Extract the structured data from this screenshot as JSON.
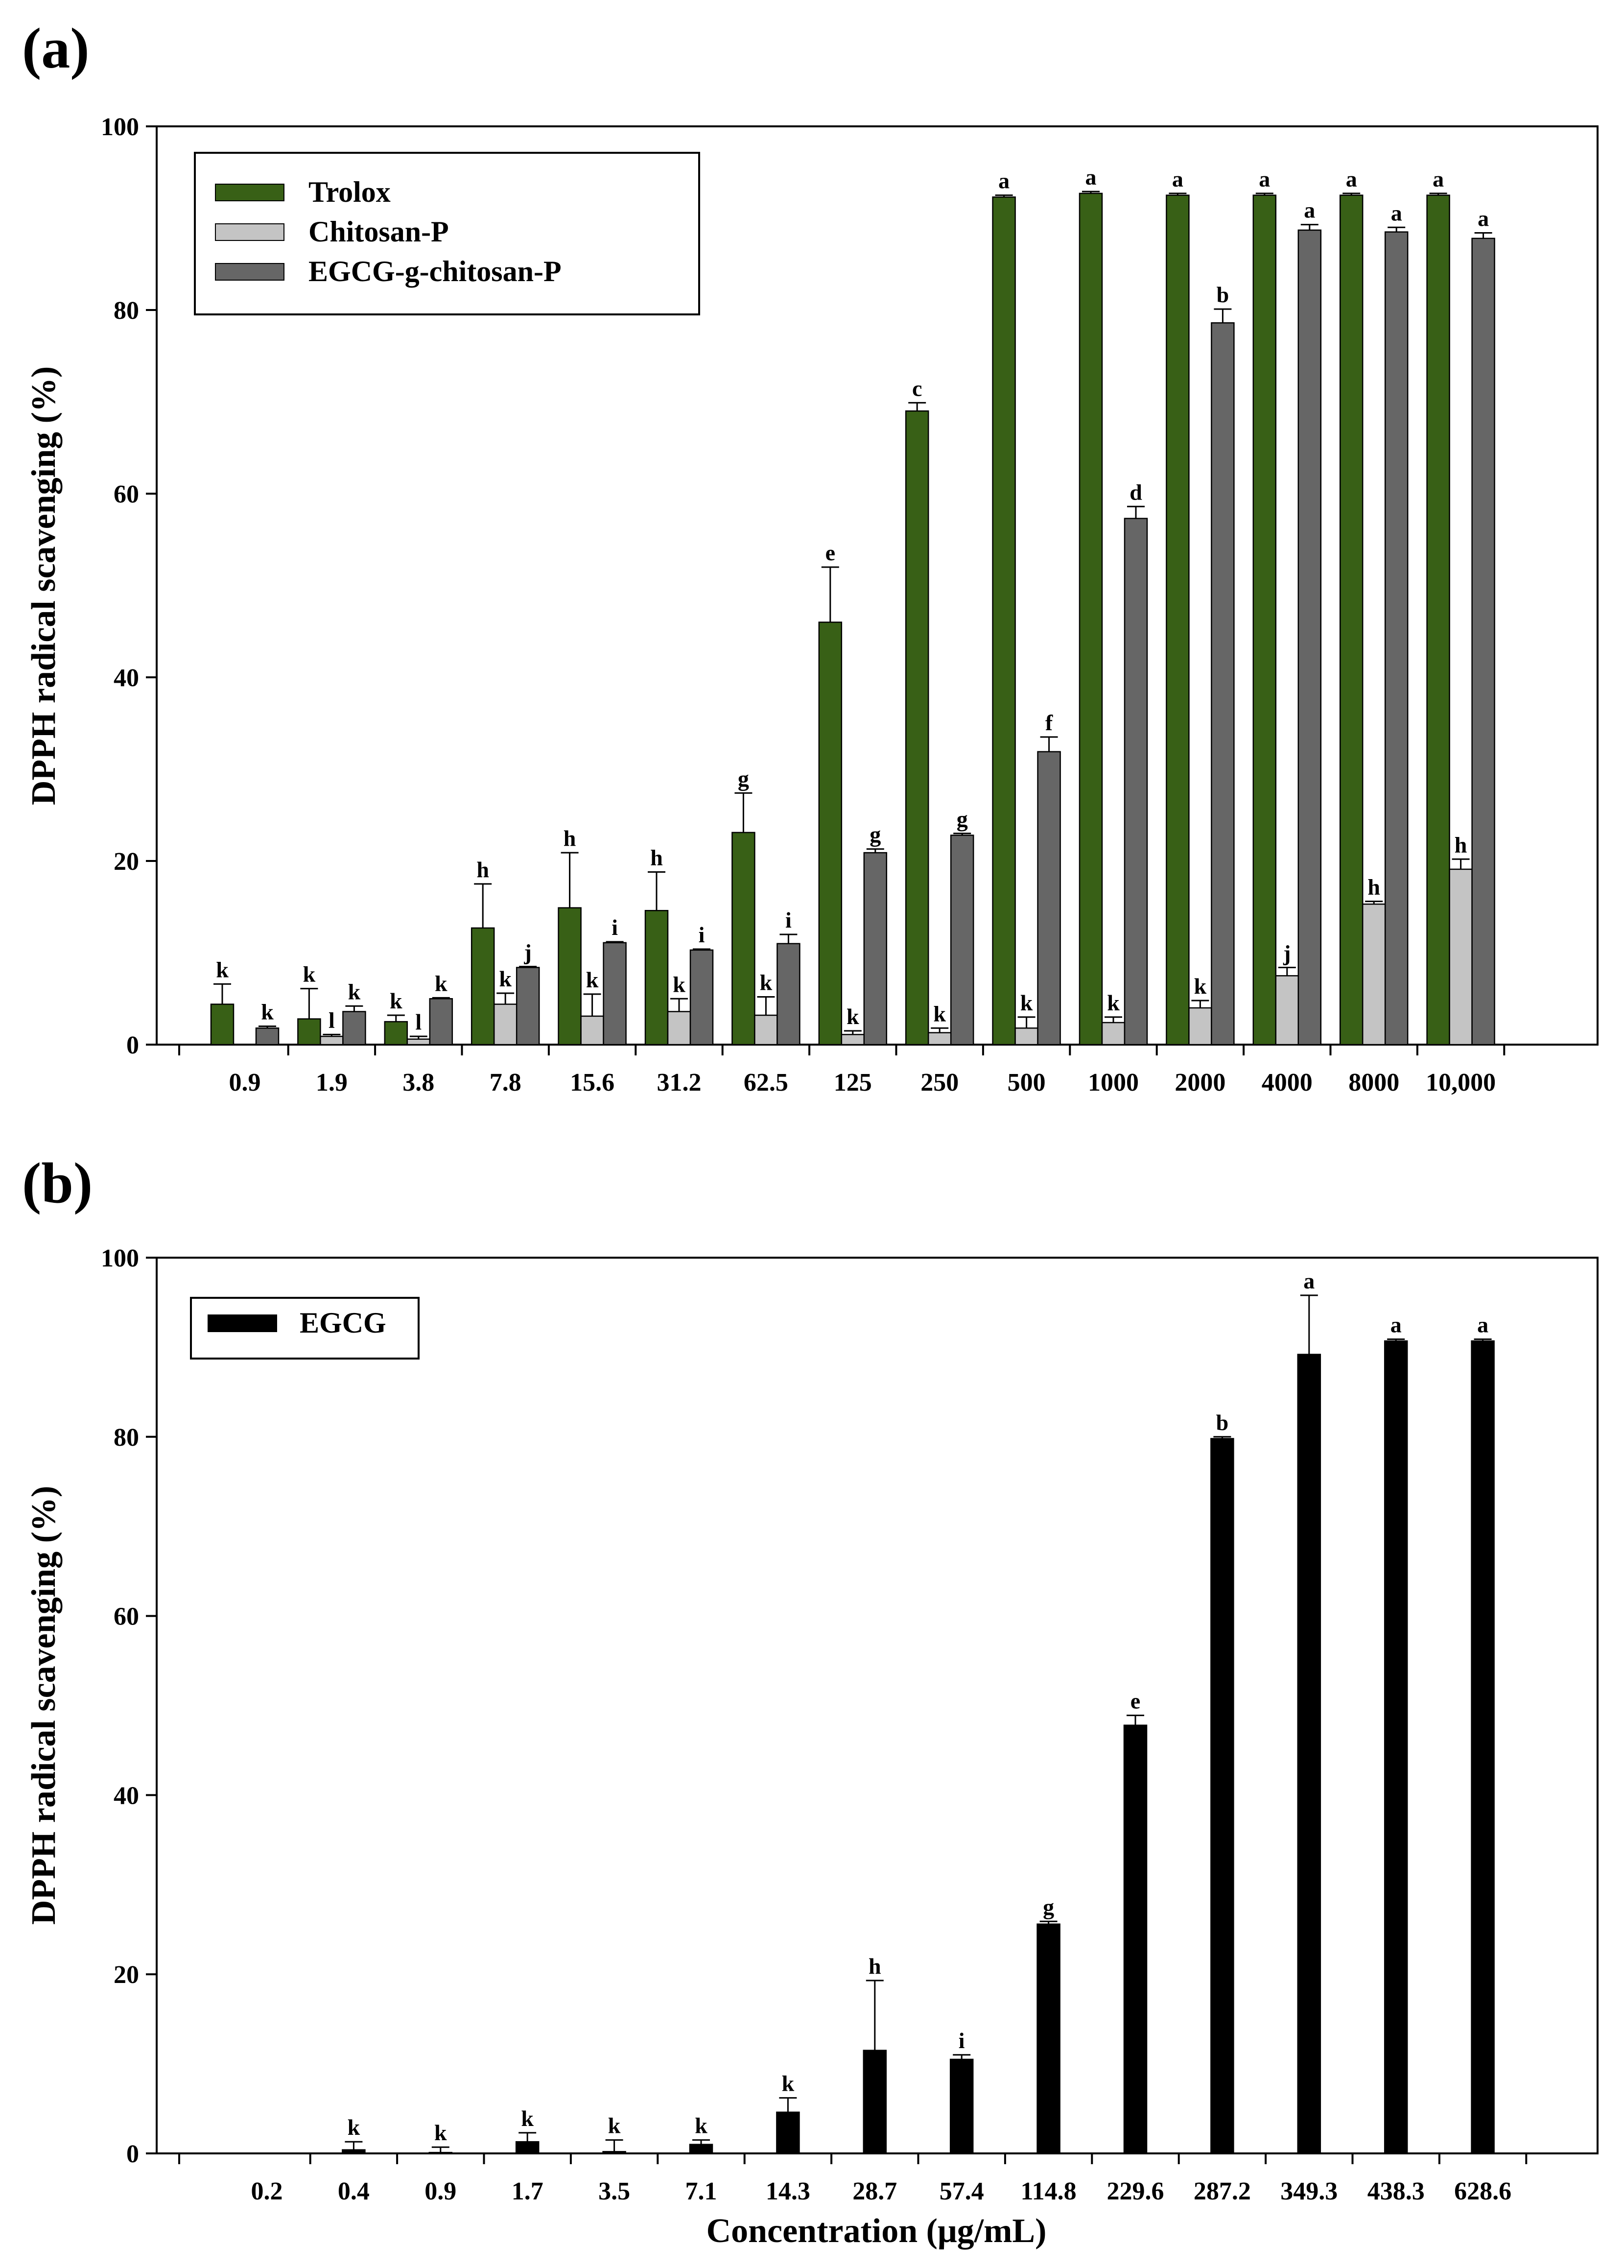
{
  "chart_data": [
    {
      "panel_label": "(a)",
      "type": "bar",
      "xlabel": "",
      "ylabel": "DPPH radical scavenging (%)",
      "ylim": [
        0,
        100
      ],
      "yticks": [
        "0",
        "20",
        "40",
        "60",
        "80",
        "100"
      ],
      "categories": [
        "0.9",
        "1.9",
        "3.8",
        "7.8",
        "15.6",
        "31.2",
        "62.5",
        "125",
        "250",
        "500",
        "1000",
        "2000",
        "4000",
        "8000",
        "10,000"
      ],
      "legend_position": "top-left",
      "series": [
        {
          "name": "Trolox",
          "color": "#386016",
          "values": [
            4.4,
            2.8,
            2.5,
            12.7,
            14.9,
            14.6,
            23.1,
            46.0,
            69.0,
            92.3,
            92.7,
            92.5,
            92.5,
            92.5,
            92.5
          ],
          "errors": [
            2.2,
            3.3,
            0.7,
            4.8,
            6.0,
            4.2,
            4.3,
            6.0,
            0.9,
            0.2,
            0.2,
            0.2,
            0.2,
            0.2,
            0.2
          ],
          "letters": [
            "k",
            "k",
            "k",
            "h",
            "h",
            "h",
            "g",
            "e",
            "c",
            "a",
            "a",
            "a",
            "a",
            "a",
            "a"
          ]
        },
        {
          "name": "Chitosan-P",
          "color": "#c4c4c4",
          "values": [
            0,
            0.9,
            0.6,
            4.4,
            3.1,
            3.6,
            3.2,
            1.1,
            1.3,
            1.8,
            2.4,
            4.0,
            7.5,
            15.3,
            19.1
          ],
          "errors": [
            0,
            0.2,
            0.3,
            1.2,
            2.4,
            1.4,
            2.0,
            0.4,
            0.5,
            1.2,
            0.6,
            0.8,
            0.9,
            0.3,
            1.1
          ],
          "letters": [
            "",
            "l",
            "l",
            "k",
            "k",
            "k",
            "k",
            "k",
            "k",
            "k",
            "k",
            "k",
            "j",
            "h",
            "h"
          ]
        },
        {
          "name": "EGCG-g-chitosan-P",
          "color": "#666666",
          "values": [
            1.8,
            3.6,
            5.0,
            8.4,
            11.1,
            10.3,
            11.0,
            20.9,
            22.8,
            31.9,
            57.3,
            78.6,
            88.7,
            88.5,
            87.8
          ],
          "errors": [
            0.2,
            0.6,
            0.1,
            0.1,
            0.1,
            0.1,
            1.0,
            0.4,
            0.2,
            1.6,
            1.3,
            1.5,
            0.6,
            0.5,
            0.6
          ],
          "letters": [
            "k",
            "k",
            "k",
            "j",
            "i",
            "i",
            "i",
            "g",
            "g",
            "f",
            "d",
            "b",
            "a",
            "a",
            "a"
          ]
        }
      ]
    },
    {
      "panel_label": "(b)",
      "type": "bar",
      "xlabel": "Concentration (μg/mL)",
      "ylabel": "DPPH radical scavenging (%)",
      "ylim": [
        0,
        100
      ],
      "yticks": [
        "0",
        "20",
        "40",
        "60",
        "80",
        "100"
      ],
      "categories": [
        "0.2",
        "0.4",
        "0.9",
        "1.7",
        "3.5",
        "7.1",
        "14.3",
        "28.7",
        "57.4",
        "114.8",
        "229.6",
        "287.2",
        "349.3",
        "438.3",
        "628.6"
      ],
      "legend_position": "top-left",
      "series": [
        {
          "name": "EGCG",
          "color": "#000000",
          "values": [
            0,
            0.4,
            0.1,
            1.3,
            0.2,
            1.0,
            4.6,
            11.5,
            10.5,
            25.6,
            47.8,
            79.8,
            89.2,
            90.7,
            90.7
          ],
          "errors": [
            0,
            0.9,
            0.6,
            1.0,
            1.3,
            0.5,
            1.6,
            7.8,
            0.5,
            0.3,
            1.1,
            0.2,
            6.6,
            0.2,
            0.2
          ],
          "letters": [
            "",
            "k",
            "k",
            "k",
            "k",
            "k",
            "k",
            "h",
            "i",
            "g",
            "e",
            "b",
            "a",
            "a",
            "a"
          ]
        }
      ]
    }
  ]
}
